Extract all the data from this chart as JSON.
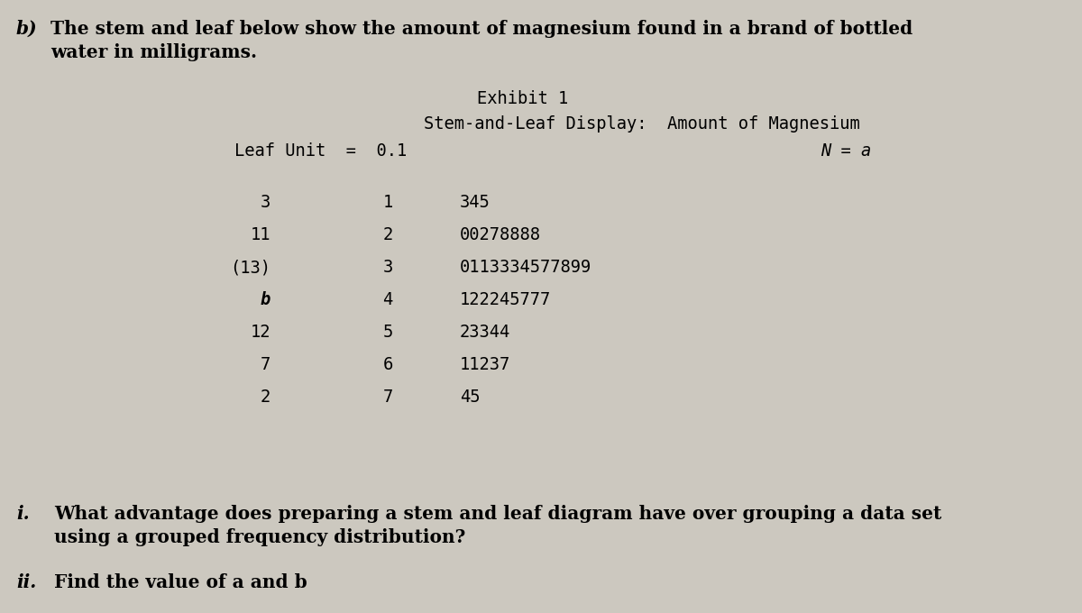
{
  "bg_color": "#ccc8bf",
  "title_b_prefix": "b)",
  "title_b_main": " The stem and leaf below show the amount of magnesium found in a brand of bottled",
  "title_b_line2": "     water in milligrams.",
  "exhibit_title": "Exhibit 1",
  "display_title": "Stem-and-Leaf Display:  Amount of Magnesium",
  "leaf_unit_line": "Leaf Unit  =  0.1",
  "n_label": "N = a",
  "rows": [
    {
      "count": "3",
      "stem": "1",
      "leaves": "345"
    },
    {
      "count": "11",
      "stem": "2",
      "leaves": "00278888"
    },
    {
      "count": "(13)",
      "stem": "3",
      "leaves": "0113334577899"
    },
    {
      "count": "b",
      "stem": "4",
      "leaves": "122245777"
    },
    {
      "count": "12",
      "stem": "5",
      "leaves": "23344"
    },
    {
      "count": "7",
      "stem": "6",
      "leaves": "11237"
    },
    {
      "count": "2",
      "stem": "7",
      "leaves": "45"
    }
  ],
  "q_i_label": "i.",
  "q_i_text": "What advantage does preparing a stem and leaf diagram have over grouping a data set",
  "q_i_text2": "using a grouped frequency distribution?",
  "q_ii_label": "ii.",
  "q_ii_text": "Find the value of a and b",
  "mono_fontsize": 13.5,
  "header_fontsize": 14.5,
  "question_fontsize": 14.5
}
